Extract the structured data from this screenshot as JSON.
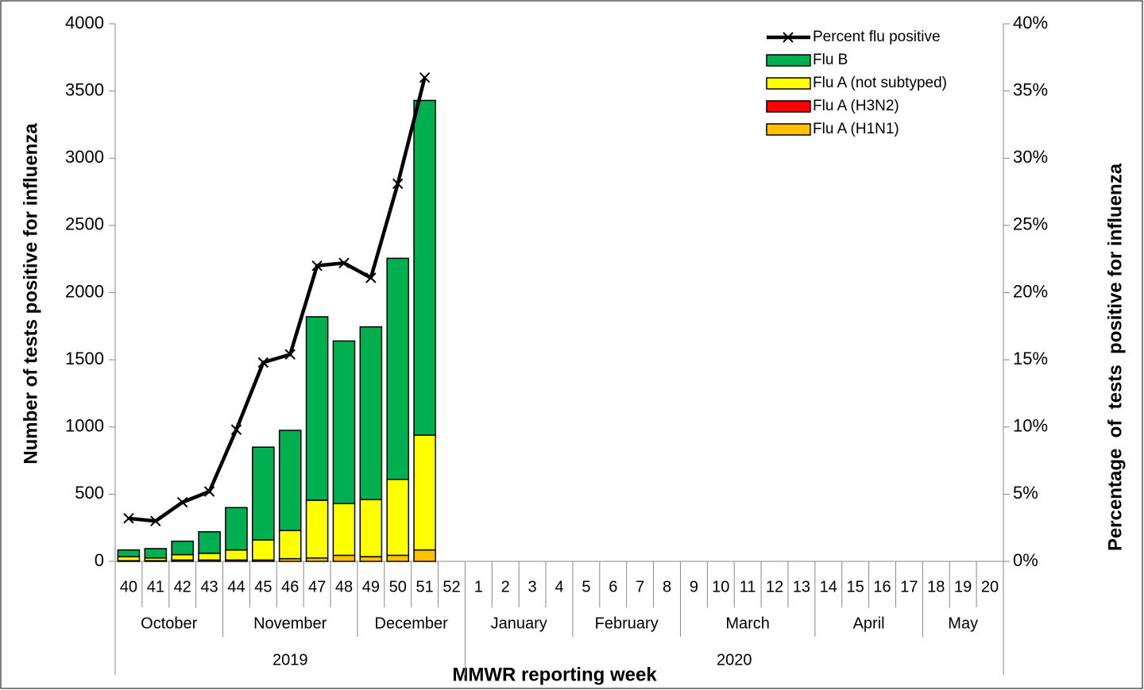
{
  "chart_data": {
    "type": "bar",
    "stacked": true,
    "y_label": "Number of tests positive for influenza",
    "y2_label": "Percentage  of  tests  positive for influenza",
    "x_label": "MMWR reporting week",
    "categories": [
      "40",
      "41",
      "42",
      "43",
      "44",
      "45",
      "46",
      "47",
      "48",
      "49",
      "50",
      "51",
      "52",
      "1",
      "2",
      "3",
      "4",
      "5",
      "6",
      "7",
      "8",
      "9",
      "10",
      "11",
      "12",
      "13",
      "14",
      "15",
      "16",
      "17",
      "18",
      "19",
      "20"
    ],
    "months": [
      "October",
      null,
      null,
      null,
      "November",
      null,
      null,
      null,
      null,
      "December",
      null,
      null,
      null,
      "January",
      null,
      null,
      null,
      "February",
      null,
      null,
      null,
      "March",
      null,
      null,
      null,
      null,
      "April",
      null,
      null,
      null,
      "May",
      null,
      null
    ],
    "years": [
      "2019",
      null,
      null,
      null,
      null,
      null,
      null,
      null,
      null,
      null,
      null,
      null,
      null,
      "2020",
      null,
      null,
      null,
      null,
      null,
      null,
      null,
      null,
      null,
      null,
      null,
      null,
      null,
      null,
      null,
      null,
      null,
      null,
      null
    ],
    "series": [
      {
        "name": "Flu A (H1N1)",
        "color": "#ffc000",
        "values": [
          5,
          5,
          10,
          10,
          10,
          10,
          20,
          25,
          45,
          35,
          45,
          85,
          null,
          null,
          null,
          null,
          null,
          null,
          null,
          null,
          null,
          null,
          null,
          null,
          null,
          null,
          null,
          null,
          null,
          null,
          null,
          null,
          null
        ]
      },
      {
        "name": "Flu A (H3N2)",
        "color": "#ff0000",
        "values": [
          0,
          0,
          0,
          0,
          0,
          0,
          0,
          0,
          0,
          0,
          0,
          0,
          null,
          null,
          null,
          null,
          null,
          null,
          null,
          null,
          null,
          null,
          null,
          null,
          null,
          null,
          null,
          null,
          null,
          null,
          null,
          null,
          null
        ]
      },
      {
        "name": "Flu A (not subtyped)",
        "color": "#ffff00",
        "values": [
          30,
          20,
          40,
          50,
          75,
          150,
          210,
          430,
          385,
          425,
          565,
          855,
          null,
          null,
          null,
          null,
          null,
          null,
          null,
          null,
          null,
          null,
          null,
          null,
          null,
          null,
          null,
          null,
          null,
          null,
          null,
          null,
          null
        ]
      },
      {
        "name": "Flu B",
        "color": "#00b050",
        "values": [
          50,
          70,
          100,
          160,
          315,
          690,
          745,
          1365,
          1210,
          1285,
          1645,
          2490,
          null,
          null,
          null,
          null,
          null,
          null,
          null,
          null,
          null,
          null,
          null,
          null,
          null,
          null,
          null,
          null,
          null,
          null,
          null,
          null,
          null
        ]
      },
      {
        "name": "Percent flu positive",
        "color": "#000000",
        "axis": "y2",
        "values": [
          3.2,
          3.0,
          4.4,
          5.2,
          9.8,
          14.8,
          15.4,
          22.0,
          22.2,
          21.1,
          28.1,
          36.0,
          null,
          null,
          null,
          null,
          null,
          null,
          null,
          null,
          null,
          null,
          null,
          null,
          null,
          null,
          null,
          null,
          null,
          null,
          null,
          null,
          null
        ]
      }
    ],
    "ylim": [
      0,
      4000
    ],
    "yticks": [
      0,
      500,
      1000,
      1500,
      2000,
      2500,
      3000,
      3500,
      4000
    ],
    "y2lim": [
      0,
      40
    ],
    "y2ticks": [
      {
        "value": 0,
        "label": "0%"
      },
      {
        "value": 5,
        "label": "5%"
      },
      {
        "value": 10,
        "label": "10%"
      },
      {
        "value": 15,
        "label": "15%"
      },
      {
        "value": 20,
        "label": "20%"
      },
      {
        "value": 25,
        "label": "25%"
      },
      {
        "value": 30,
        "label": "30%"
      },
      {
        "value": 35,
        "label": "35%"
      },
      {
        "value": 40,
        "label": "40%"
      }
    ],
    "legend": "top-right"
  }
}
